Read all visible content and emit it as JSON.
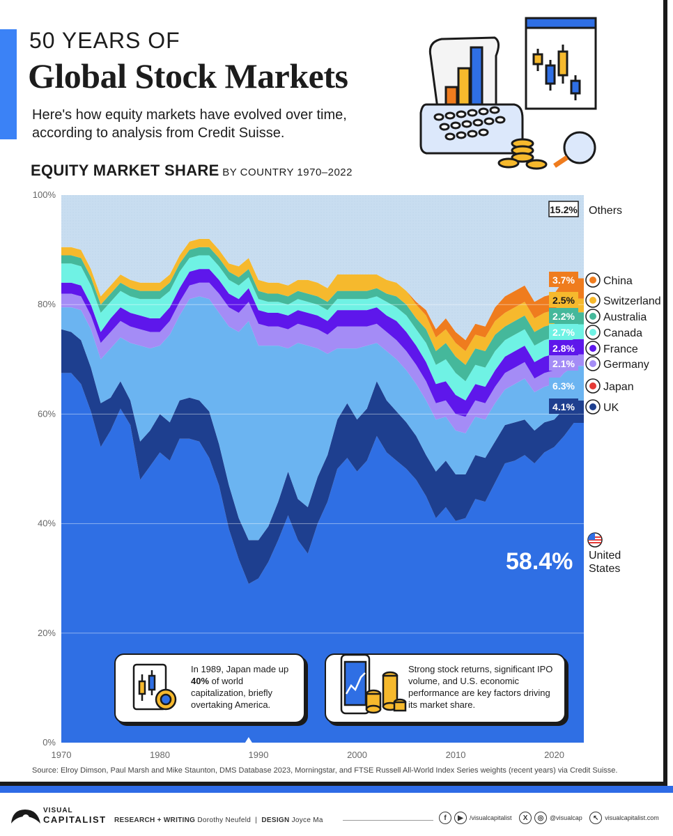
{
  "header": {
    "title_small": "50 YEARS OF",
    "title_big": "Global Stock Markets",
    "subtitle": "Here's how equity markets have evolved over time, according to analysis from Credit Suisse.",
    "section_bold": "EQUITY MARKET SHARE",
    "section_rest": " BY COUNTRY 1970–2022"
  },
  "chart_data": {
    "type": "area",
    "stacked": true,
    "x": [
      1970,
      1971,
      1972,
      1973,
      1974,
      1975,
      1976,
      1977,
      1978,
      1979,
      1980,
      1981,
      1982,
      1983,
      1984,
      1985,
      1986,
      1987,
      1988,
      1989,
      1990,
      1991,
      1992,
      1993,
      1994,
      1995,
      1996,
      1997,
      1998,
      1999,
      2000,
      2001,
      2002,
      2003,
      2004,
      2005,
      2006,
      2007,
      2008,
      2009,
      2010,
      2011,
      2012,
      2013,
      2014,
      2015,
      2016,
      2017,
      2018,
      2019,
      2020,
      2021,
      2022
    ],
    "xlim": [
      1970,
      2023
    ],
    "ylim": [
      0,
      100
    ],
    "xticks": [
      "1970",
      "1980",
      "1990",
      "2000",
      "2010",
      "2020"
    ],
    "yticks": [
      "0%",
      "20%",
      "40%",
      "60%",
      "80%",
      "100%"
    ],
    "series": [
      {
        "name": "United States",
        "color": "#2f6fe4",
        "label": "58.4%",
        "values": [
          67.5,
          67.5,
          65.5,
          60.5,
          54,
          57,
          61,
          58,
          48,
          50.5,
          53,
          51.5,
          55.5,
          55.5,
          55,
          52,
          47,
          39,
          33.5,
          29,
          30,
          33,
          37,
          41.5,
          37,
          34.5,
          40,
          44,
          50,
          52,
          49.5,
          51.5,
          56,
          53,
          51.5,
          50,
          48,
          45,
          41,
          43,
          40.5,
          41,
          44.5,
          44,
          47.5,
          51,
          51.5,
          52.5,
          51,
          53,
          54,
          56,
          58.4
        ]
      },
      {
        "name": "UK",
        "color": "#1e3f8f",
        "label": "4.1%",
        "values": [
          8,
          7.5,
          8,
          8,
          8,
          6,
          5,
          4.5,
          7,
          6.5,
          7,
          7,
          7,
          7.5,
          7.5,
          8.5,
          7.5,
          8,
          7.5,
          8,
          7,
          6.5,
          7,
          8,
          7.5,
          8.5,
          8.5,
          8.5,
          9,
          10,
          9.5,
          9.5,
          10,
          9.5,
          9,
          8.5,
          8,
          7.5,
          8.5,
          8.5,
          8.5,
          8,
          8,
          8,
          7.5,
          7,
          7,
          6.5,
          6,
          5.5,
          5,
          5,
          4.1
        ]
      },
      {
        "name": "Japan",
        "color": "#6bb4f1",
        "label": "6.3%",
        "values": [
          4,
          4.5,
          5.5,
          7,
          8,
          9,
          8,
          10.5,
          17.5,
          15,
          12.5,
          16,
          15.5,
          18,
          19,
          20.5,
          24,
          29,
          34,
          40,
          35.5,
          33,
          28.5,
          22.5,
          28.5,
          29.5,
          23.5,
          18.5,
          13,
          10,
          13,
          11.5,
          7,
          9,
          9.5,
          9.5,
          9.5,
          10,
          9.5,
          8,
          8,
          7.5,
          7,
          7,
          7,
          6.5,
          7,
          7.5,
          7,
          6.5,
          6.5,
          6.5,
          6.3
        ]
      },
      {
        "name": "Germany",
        "color": "#a48cf6",
        "label": "2.1%",
        "values": [
          2.5,
          2.5,
          2.5,
          2.5,
          3,
          3,
          3,
          3,
          3,
          3,
          2.5,
          2.5,
          2.5,
          2.5,
          2.5,
          3,
          3.5,
          3.5,
          3.5,
          3.5,
          4,
          3.5,
          3.5,
          3.5,
          3.5,
          3.5,
          3.5,
          3.5,
          4,
          4,
          4,
          3.5,
          3.5,
          3.5,
          3.5,
          3.5,
          3.5,
          3.5,
          3,
          3,
          3,
          3,
          3,
          3,
          3,
          3,
          3,
          3,
          2.5,
          2.5,
          2.5,
          2.5,
          2.1
        ]
      },
      {
        "name": "France",
        "color": "#5e17eb",
        "label": "2.8%",
        "values": [
          2,
          2,
          2,
          2,
          2,
          2.5,
          2.5,
          2.5,
          2.5,
          2.5,
          2.5,
          2.5,
          2.5,
          2.5,
          2.5,
          2.5,
          2.5,
          2.5,
          2.5,
          2.5,
          2.5,
          2.5,
          2.5,
          2.5,
          2.5,
          2.5,
          2.5,
          2.5,
          3,
          3,
          3,
          3,
          3,
          3,
          3.5,
          3.5,
          3.5,
          3.5,
          3.5,
          3.5,
          3.5,
          3,
          3,
          3,
          3,
          3,
          3,
          3,
          3,
          3,
          3,
          3,
          2.8
        ]
      },
      {
        "name": "Canada",
        "color": "#6ff2e4",
        "label": "2.7%",
        "values": [
          3.5,
          3.5,
          3.5,
          3.5,
          3.5,
          3,
          3,
          3,
          3,
          3.5,
          3.5,
          3,
          3,
          2.5,
          2.5,
          2.5,
          2.5,
          2.5,
          2.5,
          2,
          2,
          2,
          2,
          2,
          2,
          2,
          2,
          2,
          2,
          2,
          2,
          2,
          2,
          2.5,
          2.5,
          3,
          3,
          3.5,
          3.5,
          4,
          4,
          3.5,
          3.5,
          3.5,
          3.5,
          3,
          3,
          3,
          3,
          3,
          3,
          3,
          2.7
        ]
      },
      {
        "name": "Australia",
        "color": "#45b89b",
        "label": "2.2%",
        "values": [
          1.5,
          1.5,
          1.5,
          1.5,
          1.5,
          1.5,
          1.5,
          1.5,
          1.5,
          1.5,
          1.5,
          1.5,
          1.5,
          1.5,
          1.5,
          1.5,
          1.5,
          1.5,
          1.5,
          1.5,
          1.5,
          1.5,
          1.5,
          1.5,
          1.5,
          1.5,
          1.5,
          1.5,
          1.5,
          1.5,
          1.5,
          1.5,
          1.5,
          1.5,
          2,
          2,
          2,
          2.5,
          2.5,
          3,
          3,
          3,
          3,
          3,
          3,
          2.5,
          2.5,
          2.5,
          2.5,
          2.5,
          2.5,
          2.5,
          2.2
        ]
      },
      {
        "name": "Switzerland",
        "color": "#f6b92d",
        "label": "2.5%",
        "values": [
          1.5,
          1.5,
          1.5,
          1.5,
          1.5,
          1.5,
          1.5,
          1.5,
          1.5,
          1.5,
          1.5,
          1.5,
          1.5,
          1.5,
          1.5,
          1.5,
          1.5,
          1.5,
          2,
          2,
          2,
          2,
          2,
          2,
          2,
          2.5,
          2.5,
          2.5,
          3,
          3,
          3,
          3,
          2.5,
          2.5,
          2.5,
          2.5,
          2.5,
          2.5,
          2.5,
          2.5,
          2.5,
          2.5,
          2.5,
          2.5,
          2.5,
          2.5,
          2.5,
          2.5,
          2.5,
          2.5,
          2.5,
          2.5,
          2.5
        ]
      },
      {
        "name": "China",
        "color": "#ef7c1e",
        "label": "3.7%",
        "values": [
          0,
          0,
          0,
          0,
          0,
          0,
          0,
          0,
          0,
          0,
          0,
          0,
          0,
          0,
          0,
          0,
          0,
          0,
          0,
          0,
          0,
          0,
          0,
          0,
          0,
          0,
          0,
          0,
          0,
          0,
          0,
          0,
          0,
          0,
          0,
          0,
          0.5,
          1,
          1.5,
          2,
          2,
          2,
          2,
          2,
          2.5,
          3,
          3,
          3,
          3,
          3,
          3,
          3.5,
          3.7
        ]
      },
      {
        "name": "Others",
        "color": "#c8ddf0",
        "label": "15.2%",
        "values": [
          9.5,
          9.5,
          10,
          10,
          10.5,
          15,
          13,
          13,
          13,
          14.5,
          16,
          11.5,
          10,
          8,
          8,
          7,
          10.5,
          10.5,
          10,
          10.5,
          14.5,
          15,
          15,
          16,
          13.5,
          13,
          14,
          15.5,
          13.5,
          12.5,
          13.5,
          13,
          12,
          12,
          14,
          16,
          19,
          21,
          25,
          23.5,
          25,
          26.5,
          24.5,
          25,
          20.5,
          18.5,
          17.5,
          16.5,
          17.5,
          17,
          16.5,
          15.5,
          15.2
        ]
      }
    ]
  },
  "callouts": {
    "japan_text_1": "In 1989, Japan made up ",
    "japan_bold": "40%",
    "japan_text_2": " of world capitalization, briefly overtaking America.",
    "us_text": "Strong stock returns, significant IPO volume, and U.S. economic performance are key factors driving its market share."
  },
  "us_label": {
    "pct": "58.4%",
    "name_line1": "United",
    "name_line2": "States"
  },
  "source": "Source: Elroy Dimson, Paul Marsh and Mike Staunton, DMS Database 2023, Morningstar, and FTSE Russell All-World Index Series weights (recent years) via Credit Suisse.",
  "footer": {
    "logo_line1": "VISUAL",
    "logo_line2": "CAPITALIST",
    "research_label": "RESEARCH + WRITING",
    "research_name": "Dorothy Neufeld",
    "sep": "|",
    "design_label": "DESIGN",
    "design_name": "Joyce Ma",
    "social1": "/visualcapitalist",
    "social2": "@visualcap",
    "social3": "visualcapitalist.com"
  },
  "colors": {
    "accent": "#3b82f6",
    "dark": "#1a1a1a"
  },
  "icons": [
    "keyboard-chart-illustration",
    "candlestick-window-illustration",
    "magnifier-icon",
    "coins-icon",
    "phone-chart-icon",
    "tablet-candlestick-icon"
  ]
}
